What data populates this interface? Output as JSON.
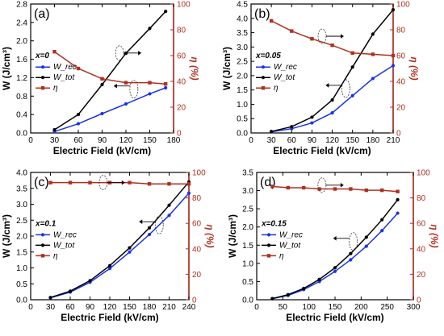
{
  "figure": {
    "colors": {
      "rec": "#1a33e6",
      "tot": "#000000",
      "eta": "#b03020",
      "axis": "#000000"
    }
  },
  "chart_data": [
    {
      "panel": "a",
      "type": "line",
      "label": "(a)",
      "composition": "x=0",
      "xlabel": "Electric Field (kV/cm)",
      "ylabel_left": "W (J/cm³)",
      "ylabel_right": "η (%)",
      "xlim": [
        0,
        180
      ],
      "xticks": [
        0,
        30,
        60,
        90,
        120,
        150,
        180
      ],
      "ylim_left": [
        0,
        2.8
      ],
      "yticks_left": [
        0.0,
        0.4,
        0.8,
        1.2,
        1.6,
        2.0,
        2.4,
        2.8
      ],
      "ylim_right": [
        0,
        100
      ],
      "yticks_right": [
        0,
        20,
        40,
        60,
        80,
        100
      ],
      "legend_position": "middle-left",
      "series": [
        {
          "name": "W_rec",
          "key": "rec",
          "axis": "left",
          "x": [
            30,
            60,
            90,
            120,
            150,
            170
          ],
          "y": [
            0.03,
            0.2,
            0.42,
            0.63,
            0.85,
            0.98
          ]
        },
        {
          "name": "W_tot",
          "key": "tot",
          "axis": "left",
          "x": [
            30,
            60,
            90,
            120,
            150,
            170
          ],
          "y": [
            0.07,
            0.4,
            1.05,
            1.73,
            2.27,
            2.64
          ]
        },
        {
          "name": "η",
          "key": "eta",
          "axis": "right",
          "x": [
            30,
            60,
            90,
            120,
            150,
            170
          ],
          "y": [
            63,
            50,
            42,
            39,
            39,
            38
          ]
        }
      ],
      "annotations": {
        "arrow_right": {
          "x": 112,
          "y_right": 62
        },
        "arrow_left": {
          "x": 130,
          "y_left": 0.95
        }
      }
    },
    {
      "panel": "b",
      "type": "line",
      "label": "(b)",
      "composition": "x=0.05",
      "xlabel": "Electric Field (kV/cm)",
      "ylabel_left": "W (J/cm³)",
      "ylabel_right": "η (%)",
      "xlim": [
        0,
        210
      ],
      "xticks": [
        0,
        30,
        60,
        90,
        120,
        150,
        180,
        210
      ],
      "ylim_left": [
        0,
        4.5
      ],
      "yticks_left": [
        0.0,
        0.5,
        1.0,
        1.5,
        2.0,
        2.5,
        3.0,
        3.5,
        4.0,
        4.5
      ],
      "ylim_right": [
        0,
        100
      ],
      "yticks_right": [
        0,
        20,
        40,
        60,
        80,
        100
      ],
      "legend_position": "middle-left",
      "series": [
        {
          "name": "W_rec",
          "key": "rec",
          "axis": "left",
          "x": [
            30,
            60,
            90,
            120,
            150,
            180,
            210
          ],
          "y": [
            0.04,
            0.15,
            0.35,
            0.7,
            1.3,
            1.9,
            2.35
          ]
        },
        {
          "name": "W_tot",
          "key": "tot",
          "axis": "left",
          "x": [
            30,
            60,
            90,
            120,
            150,
            180,
            210
          ],
          "y": [
            0.05,
            0.22,
            0.55,
            1.15,
            2.3,
            3.45,
            4.3
          ]
        },
        {
          "name": "η",
          "key": "eta",
          "axis": "right",
          "x": [
            30,
            60,
            90,
            120,
            150,
            180,
            210
          ],
          "y": [
            87,
            79,
            73,
            68,
            62,
            61,
            60
          ]
        }
      ],
      "annotations": {
        "arrow_right": {
          "x": 105,
          "y_right": 75
        },
        "arrow_left": {
          "x": 140,
          "y_left": 1.55
        }
      }
    },
    {
      "panel": "c",
      "type": "line",
      "label": "(c)",
      "composition": "x=0.1",
      "xlabel": "Electric Field (kV/cm)",
      "ylabel_left": "W (J/cm³)",
      "ylabel_right": "η (%)",
      "xlim": [
        0,
        240
      ],
      "xticks": [
        0,
        30,
        60,
        90,
        120,
        150,
        180,
        210,
        240
      ],
      "ylim_left": [
        0,
        4.0
      ],
      "yticks_left": [
        0.0,
        0.5,
        1.0,
        1.5,
        2.0,
        2.5,
        3.0,
        3.5,
        4.0
      ],
      "ylim_right": [
        0,
        100
      ],
      "yticks_right": [
        0,
        20,
        40,
        60,
        80,
        100
      ],
      "legend_position": "middle-left",
      "series": [
        {
          "name": "W_rec",
          "key": "rec",
          "axis": "left",
          "x": [
            30,
            60,
            90,
            120,
            150,
            180,
            210,
            240
          ],
          "y": [
            0.06,
            0.24,
            0.55,
            0.98,
            1.5,
            2.05,
            2.65,
            3.35
          ]
        },
        {
          "name": "W_tot",
          "key": "tot",
          "axis": "left",
          "x": [
            30,
            60,
            90,
            120,
            150,
            180,
            210,
            240
          ],
          "y": [
            0.07,
            0.27,
            0.6,
            1.07,
            1.63,
            2.26,
            2.97,
            3.7
          ]
        },
        {
          "name": "η",
          "key": "eta",
          "axis": "right",
          "x": [
            30,
            60,
            90,
            120,
            150,
            180,
            210,
            240
          ],
          "y": [
            92,
            92,
            92,
            92,
            92,
            91,
            91,
            91
          ]
        }
      ],
      "annotations": {
        "arrow_right": {
          "x": 110,
          "y_right": 92
        },
        "arrow_left": {
          "x": 195,
          "y_left": 2.35
        }
      }
    },
    {
      "panel": "d",
      "type": "line",
      "label": "(d)",
      "composition": "x=0.15",
      "xlabel": "Electric Field (kV/cm)",
      "ylabel_left": "W (J/cm³)",
      "ylabel_right": "η (%)",
      "xlim": [
        0,
        300
      ],
      "xticks": [
        0,
        50,
        100,
        150,
        200,
        250,
        300
      ],
      "ylim_left": [
        0,
        3.5
      ],
      "yticks_left": [
        0.0,
        0.5,
        1.0,
        1.5,
        2.0,
        2.5,
        3.0,
        3.5
      ],
      "ylim_right": [
        0,
        100
      ],
      "yticks_right": [
        0,
        20,
        40,
        60,
        80,
        100
      ],
      "legend_position": "middle-left",
      "series": [
        {
          "name": "W_rec",
          "key": "rec",
          "axis": "left",
          "x": [
            30,
            60,
            90,
            120,
            150,
            180,
            210,
            240,
            270
          ],
          "y": [
            0.03,
            0.12,
            0.28,
            0.5,
            0.78,
            1.1,
            1.47,
            1.9,
            2.38
          ]
        },
        {
          "name": "W_tot",
          "key": "tot",
          "axis": "left",
          "x": [
            30,
            60,
            90,
            120,
            150,
            180,
            210,
            240,
            270
          ],
          "y": [
            0.03,
            0.14,
            0.31,
            0.56,
            0.88,
            1.27,
            1.72,
            2.2,
            2.75
          ]
        },
        {
          "name": "η",
          "key": "eta",
          "axis": "right",
          "x": [
            30,
            60,
            90,
            120,
            150,
            180,
            210,
            240,
            270
          ],
          "y": [
            89,
            88,
            88,
            87,
            87,
            87,
            86,
            86,
            85
          ]
        }
      ],
      "annotations": {
        "arrow_right": {
          "x": 125,
          "y_right": 90
        },
        "arrow_left": {
          "x": 185,
          "y_left": 1.6
        }
      }
    }
  ]
}
